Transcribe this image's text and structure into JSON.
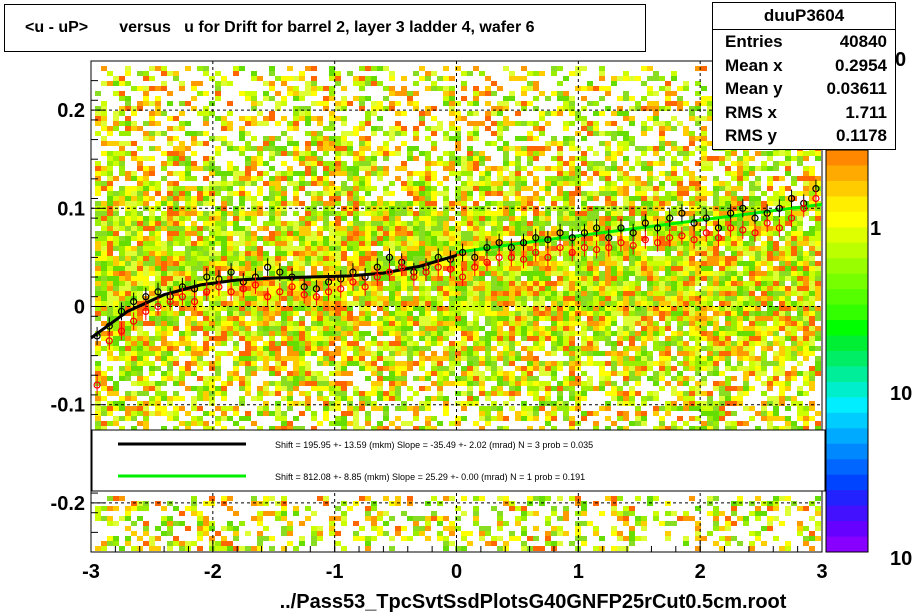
{
  "title": "<u - uP>       versus   u for Drift for barrel 2, layer 3 ladder 4, wafer 6",
  "stats": {
    "name": "duuP3604",
    "rows": [
      {
        "label": "Entries",
        "value": "40840"
      },
      {
        "label": "Mean x",
        "value": "0.2954"
      },
      {
        "label": "Mean y",
        "value": "0.03611"
      },
      {
        "label": "RMS x",
        "value": "1.711"
      },
      {
        "label": "RMS y",
        "value": "0.1178"
      }
    ]
  },
  "xlabel": "../Pass53_TpcSvtSsdPlotsG40GNFP25rCut0.5cm.root",
  "colorbar_labels": [
    "1",
    "10",
    "10"
  ],
  "colorbar_top_fragment": "0",
  "legend": [
    {
      "text": "Shift =   195.95 +- 13.59 (mkm) Slope =   -35.49 +- 2.02 (mrad)  N = 3 prob = 0.035",
      "color": "#000000"
    },
    {
      "text": "Shift =   812.08 +- 8.85 (mkm) Slope =    25.29 +- 0.00 (mrad)  N = 1 prob = 0.191",
      "color": "#00ee00"
    }
  ],
  "chart_data": {
    "type": "scatter",
    "xlim": [
      -3,
      3
    ],
    "ylim": [
      -0.25,
      0.25
    ],
    "xticks": [
      -3,
      -2,
      -1,
      0,
      1,
      2,
      3
    ],
    "xtick_labels": [
      "-3",
      "-2",
      "-1",
      "0",
      "1",
      "2",
      "3"
    ],
    "yticks": [
      -0.2,
      -0.1,
      0,
      0.1,
      0.2
    ],
    "ytick_labels": [
      "-0.2",
      "-0.1",
      "0",
      "0.1",
      "0.2"
    ],
    "grid": true,
    "background": "2D histogram, colour scale from violet (low) through blue, cyan, green, yellow to orange/red (high)",
    "series": [
      {
        "marker": "open circle",
        "color": "#000000",
        "x": [
          -2.95,
          -2.85,
          -2.75,
          -2.65,
          -2.55,
          -2.45,
          -2.35,
          -2.25,
          -2.15,
          -2.05,
          -1.95,
          -1.85,
          -1.75,
          -1.65,
          -1.55,
          -1.45,
          -1.35,
          -1.25,
          -1.15,
          -1.05,
          -0.95,
          -0.85,
          -0.75,
          -0.65,
          -0.55,
          -0.45,
          -0.35,
          -0.25,
          -0.15,
          -0.05,
          0.05,
          0.15,
          0.25,
          0.35,
          0.45,
          0.55,
          0.65,
          0.75,
          0.85,
          0.95,
          1.05,
          1.15,
          1.25,
          1.35,
          1.45,
          1.55,
          1.65,
          1.75,
          1.85,
          1.95,
          2.05,
          2.15,
          2.25,
          2.35,
          2.45,
          2.55,
          2.65,
          2.75,
          2.85,
          2.95
        ],
        "y": [
          -0.03,
          -0.02,
          -0.005,
          0.005,
          0.01,
          0.015,
          0.01,
          0.02,
          0.018,
          0.03,
          0.028,
          0.035,
          0.025,
          0.03,
          0.04,
          0.035,
          0.03,
          0.02,
          0.018,
          0.025,
          0.028,
          0.035,
          0.03,
          0.04,
          0.05,
          0.045,
          0.035,
          0.04,
          0.05,
          0.048,
          0.055,
          0.05,
          0.06,
          0.065,
          0.06,
          0.065,
          0.07,
          0.068,
          0.075,
          0.07,
          0.075,
          0.08,
          0.07,
          0.08,
          0.075,
          0.085,
          0.08,
          0.09,
          0.095,
          0.085,
          0.09,
          0.08,
          0.095,
          0.1,
          0.09,
          0.095,
          0.1,
          0.11,
          0.105,
          0.12
        ]
      },
      {
        "marker": "open circle",
        "color": "#ff0000",
        "x": [
          -2.95,
          -2.85,
          -2.75,
          -2.65,
          -2.55,
          -2.45,
          -2.35,
          -2.25,
          -2.15,
          -2.05,
          -1.95,
          -1.85,
          -1.75,
          -1.65,
          -1.55,
          -1.45,
          -1.35,
          -1.25,
          -1.15,
          -1.05,
          -0.95,
          -0.85,
          -0.75,
          -0.65,
          -0.55,
          -0.45,
          -0.35,
          -0.25,
          -0.15,
          -0.05,
          0.05,
          0.15,
          0.25,
          0.35,
          0.45,
          0.55,
          0.65,
          0.75,
          0.85,
          0.95,
          1.05,
          1.15,
          1.25,
          1.35,
          1.45,
          1.55,
          1.65,
          1.75,
          1.85,
          1.95,
          2.05,
          2.15,
          2.25,
          2.35,
          2.45,
          2.55,
          2.65,
          2.75,
          2.85,
          2.95
        ],
        "y": [
          -0.08,
          -0.035,
          -0.025,
          -0.015,
          -0.005,
          0.0,
          0.005,
          0.01,
          0.005,
          0.015,
          0.02,
          0.015,
          0.018,
          0.022,
          0.01,
          0.015,
          0.02,
          0.012,
          0.01,
          0.015,
          0.018,
          0.025,
          0.02,
          0.03,
          0.035,
          0.04,
          0.03,
          0.035,
          0.04,
          0.038,
          0.03,
          0.04,
          0.045,
          0.05,
          0.05,
          0.048,
          0.055,
          0.05,
          0.06,
          0.055,
          0.06,
          0.058,
          0.06,
          0.065,
          0.062,
          0.068,
          0.065,
          0.07,
          0.072,
          0.068,
          0.075,
          0.07,
          0.08,
          0.078,
          0.075,
          0.085,
          0.08,
          0.09,
          0.1,
          0.11
        ]
      }
    ],
    "fits": [
      {
        "color": "#000000",
        "x": [
          -3.0,
          -2.7,
          -2.4,
          -2.1,
          -1.8,
          -1.5,
          -1.2,
          -0.9,
          -0.6,
          -0.3,
          0.0
        ],
        "y": [
          -0.032,
          -0.005,
          0.012,
          0.022,
          0.027,
          0.029,
          0.03,
          0.031,
          0.034,
          0.041,
          0.052
        ]
      },
      {
        "color": "#00ee00",
        "x": [
          0.0,
          0.5,
          1.0,
          1.5,
          2.0,
          2.5,
          3.0
        ],
        "y": [
          0.055,
          0.064,
          0.072,
          0.08,
          0.088,
          0.096,
          0.104
        ]
      }
    ]
  }
}
